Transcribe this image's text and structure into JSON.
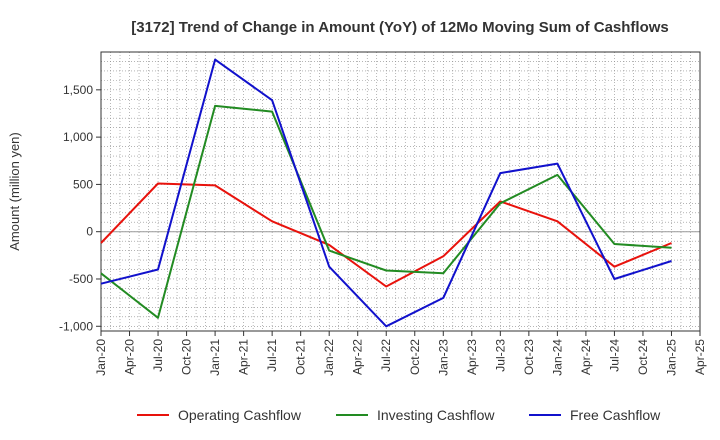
{
  "chart_data": {
    "type": "line",
    "title": "[3172]  Trend of Change in Amount (YoY) of 12Mo Moving Sum of Cashflows",
    "xlabel": "",
    "ylabel": "Amount (million yen)",
    "ylim": [
      -1050,
      1900
    ],
    "yticks": [
      -1000,
      -500,
      0,
      500,
      1000,
      1500
    ],
    "ytick_labels": [
      "-1,000",
      "-500",
      "0",
      "500",
      "1,000",
      "1,500"
    ],
    "categories": [
      "Jan-20",
      "Apr-20",
      "Jul-20",
      "Oct-20",
      "Jan-21",
      "Apr-21",
      "Jul-21",
      "Oct-21",
      "Jan-22",
      "Apr-22",
      "Jul-22",
      "Oct-22",
      "Jan-23",
      "Apr-23",
      "Jul-23",
      "Oct-23",
      "Jan-24",
      "Apr-24",
      "Jul-24",
      "Oct-24",
      "Jan-25",
      "Apr-25"
    ],
    "grid": true,
    "legend_position": "bottom",
    "series": [
      {
        "name": "Operating Cashflow",
        "color": "#e8120c",
        "points": [
          {
            "x": "Jan-20",
            "y": -120
          },
          {
            "x": "Jul-20",
            "y": 510
          },
          {
            "x": "Jan-21",
            "y": 490
          },
          {
            "x": "Jul-21",
            "y": 110
          },
          {
            "x": "Jan-22",
            "y": -140
          },
          {
            "x": "Jul-22",
            "y": -580
          },
          {
            "x": "Jan-23",
            "y": -260
          },
          {
            "x": "Jul-23",
            "y": 320
          },
          {
            "x": "Jan-24",
            "y": 110
          },
          {
            "x": "Jul-24",
            "y": -370
          },
          {
            "x": "Jan-25",
            "y": -120
          }
        ]
      },
      {
        "name": "Investing Cashflow",
        "color": "#228b22",
        "points": [
          {
            "x": "Jan-20",
            "y": -440
          },
          {
            "x": "Jul-20",
            "y": -910
          },
          {
            "x": "Jan-21",
            "y": 1330
          },
          {
            "x": "Jul-21",
            "y": 1270
          },
          {
            "x": "Jan-22",
            "y": -200
          },
          {
            "x": "Jul-22",
            "y": -410
          },
          {
            "x": "Jan-23",
            "y": -440
          },
          {
            "x": "Jul-23",
            "y": 300
          },
          {
            "x": "Jan-24",
            "y": 600
          },
          {
            "x": "Jul-24",
            "y": -130
          },
          {
            "x": "Jan-25",
            "y": -170
          }
        ]
      },
      {
        "name": "Free Cashflow",
        "color": "#1111cc",
        "points": [
          {
            "x": "Jan-20",
            "y": -550
          },
          {
            "x": "Jul-20",
            "y": -400
          },
          {
            "x": "Jan-21",
            "y": 1820
          },
          {
            "x": "Jul-21",
            "y": 1390
          },
          {
            "x": "Jan-22",
            "y": -370
          },
          {
            "x": "Jul-22",
            "y": -1000
          },
          {
            "x": "Jan-23",
            "y": -700
          },
          {
            "x": "Jul-23",
            "y": 620
          },
          {
            "x": "Jan-24",
            "y": 720
          },
          {
            "x": "Jul-24",
            "y": -500
          },
          {
            "x": "Jan-25",
            "y": -310
          }
        ]
      }
    ]
  }
}
